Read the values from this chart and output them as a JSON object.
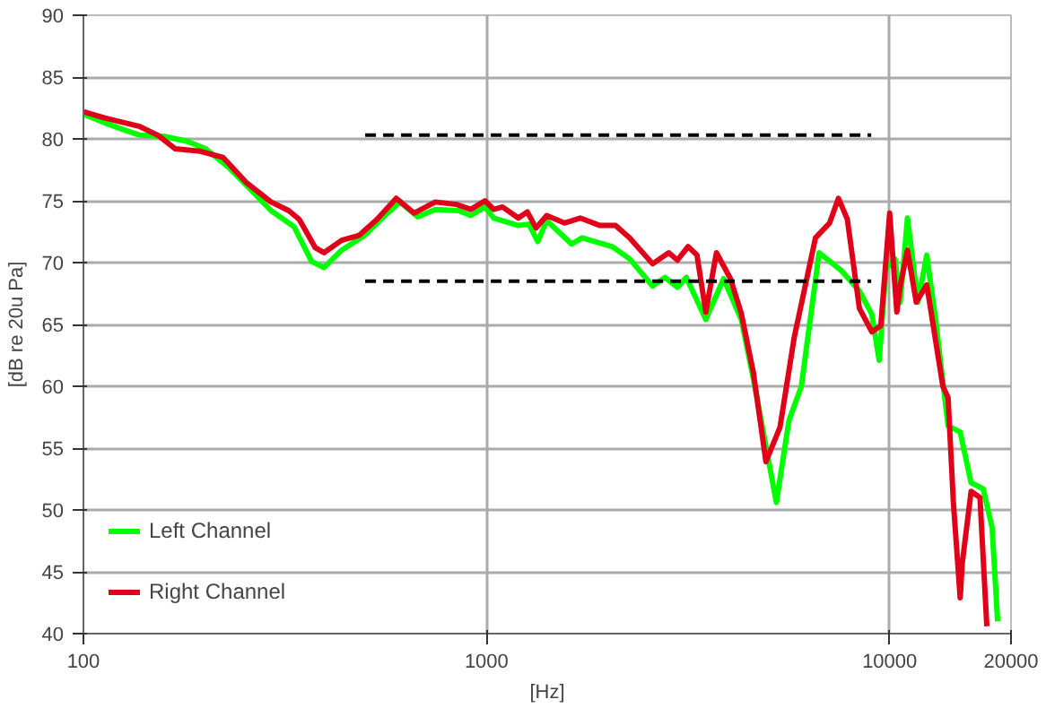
{
  "chart_data": {
    "type": "line",
    "xlabel": "[Hz]",
    "ylabel": "[dB re 20u Pa]",
    "log": "x",
    "xlim": [
      100,
      20000
    ],
    "ylim": [
      40,
      90
    ],
    "xticks": [
      100,
      1000,
      10000,
      20000
    ],
    "yticks": [
      40,
      45,
      50,
      55,
      60,
      65,
      70,
      75,
      80,
      85,
      90
    ],
    "grid": true,
    "legend": "bottom left",
    "line_style": "solid",
    "marker": "none",
    "series": [
      {
        "name": "Left Channel",
        "color": "#00ff00",
        "x": [
          100,
          113,
          127,
          138,
          159,
          181,
          201,
          229,
          253,
          292,
          333,
          368,
          395,
          437,
          498,
          551,
          610,
          675,
          746,
          851,
          914,
          991,
          1042,
          1199,
          1274,
          1340,
          1410,
          1625,
          1726,
          2047,
          2265,
          2582,
          2773,
          2976,
          3131,
          3499,
          3873,
          4285,
          4592,
          5236,
          5623,
          6039,
          6683,
          7621,
          8414,
          9036,
          9419,
          9795,
          10310,
          10620,
          11070,
          11750,
          12360,
          13000,
          13960,
          14960,
          15920,
          17060,
          17950,
          18530
        ],
        "values": [
          82.0,
          81.3,
          80.7,
          80.3,
          80.2,
          79.8,
          79.2,
          77.7,
          76.3,
          74.2,
          72.9,
          70.1,
          69.6,
          71.0,
          72.2,
          73.6,
          74.9,
          73.7,
          74.3,
          74.2,
          73.8,
          74.5,
          73.6,
          73.0,
          73.1,
          71.7,
          73.4,
          71.5,
          72.0,
          71.3,
          70.3,
          68.1,
          68.8,
          68.0,
          68.8,
          65.4,
          68.7,
          65.4,
          60.6,
          50.6,
          57.2,
          60.0,
          70.8,
          69.3,
          67.7,
          65.8,
          62.1,
          69.5,
          70.3,
          66.8,
          73.6,
          66.8,
          70.6,
          65.4,
          56.8,
          56.3,
          52.2,
          51.7,
          48.6,
          41.0
        ]
      },
      {
        "name": "Right Channel",
        "color": "#e0001a",
        "x": [
          100,
          113,
          138,
          153,
          169,
          195,
          222,
          253,
          292,
          323,
          343,
          376,
          395,
          437,
          483,
          535,
          597,
          661,
          746,
          842,
          914,
          991,
          1042,
          1095,
          1199,
          1262,
          1327,
          1410,
          1560,
          1708,
          1910,
          2089,
          2265,
          2582,
          2831,
          2976,
          3162,
          3327,
          3499,
          3718,
          4027,
          4285,
          4592,
          4932,
          5346,
          5794,
          6546,
          7096,
          7464,
          7852,
          8414,
          9036,
          9506,
          10000,
          10420,
          10620,
          11070,
          11640,
          12360,
          13550,
          13960,
          14390,
          14960,
          15140,
          15920,
          16750,
          17420
        ],
        "values": [
          82.2,
          81.7,
          81.0,
          80.3,
          79.2,
          79.0,
          78.5,
          76.5,
          74.9,
          74.2,
          73.5,
          71.2,
          70.8,
          71.8,
          72.2,
          73.5,
          75.2,
          74.0,
          74.9,
          74.7,
          74.3,
          75.0,
          74.3,
          74.5,
          73.6,
          74.1,
          72.8,
          73.8,
          73.2,
          73.6,
          73.0,
          73.0,
          72.0,
          69.9,
          70.8,
          70.2,
          71.3,
          70.6,
          66.0,
          70.8,
          68.7,
          65.9,
          61.1,
          53.9,
          56.7,
          63.9,
          72.0,
          73.2,
          75.2,
          73.5,
          66.3,
          64.4,
          64.9,
          74.0,
          66.0,
          68.1,
          71.0,
          66.8,
          68.2,
          60.0,
          59.1,
          50.6,
          42.9,
          45.7,
          51.5,
          51.0,
          40.6
        ]
      },
      {
        "color": "#000000",
        "line_style": "dashed",
        "x": [
          500,
          9000
        ],
        "values": [
          80.3,
          80.3
        ]
      },
      {
        "color": "#000000",
        "line_style": "dashed",
        "x": [
          500,
          9000
        ],
        "values": [
          68.5,
          68.5
        ]
      }
    ]
  }
}
